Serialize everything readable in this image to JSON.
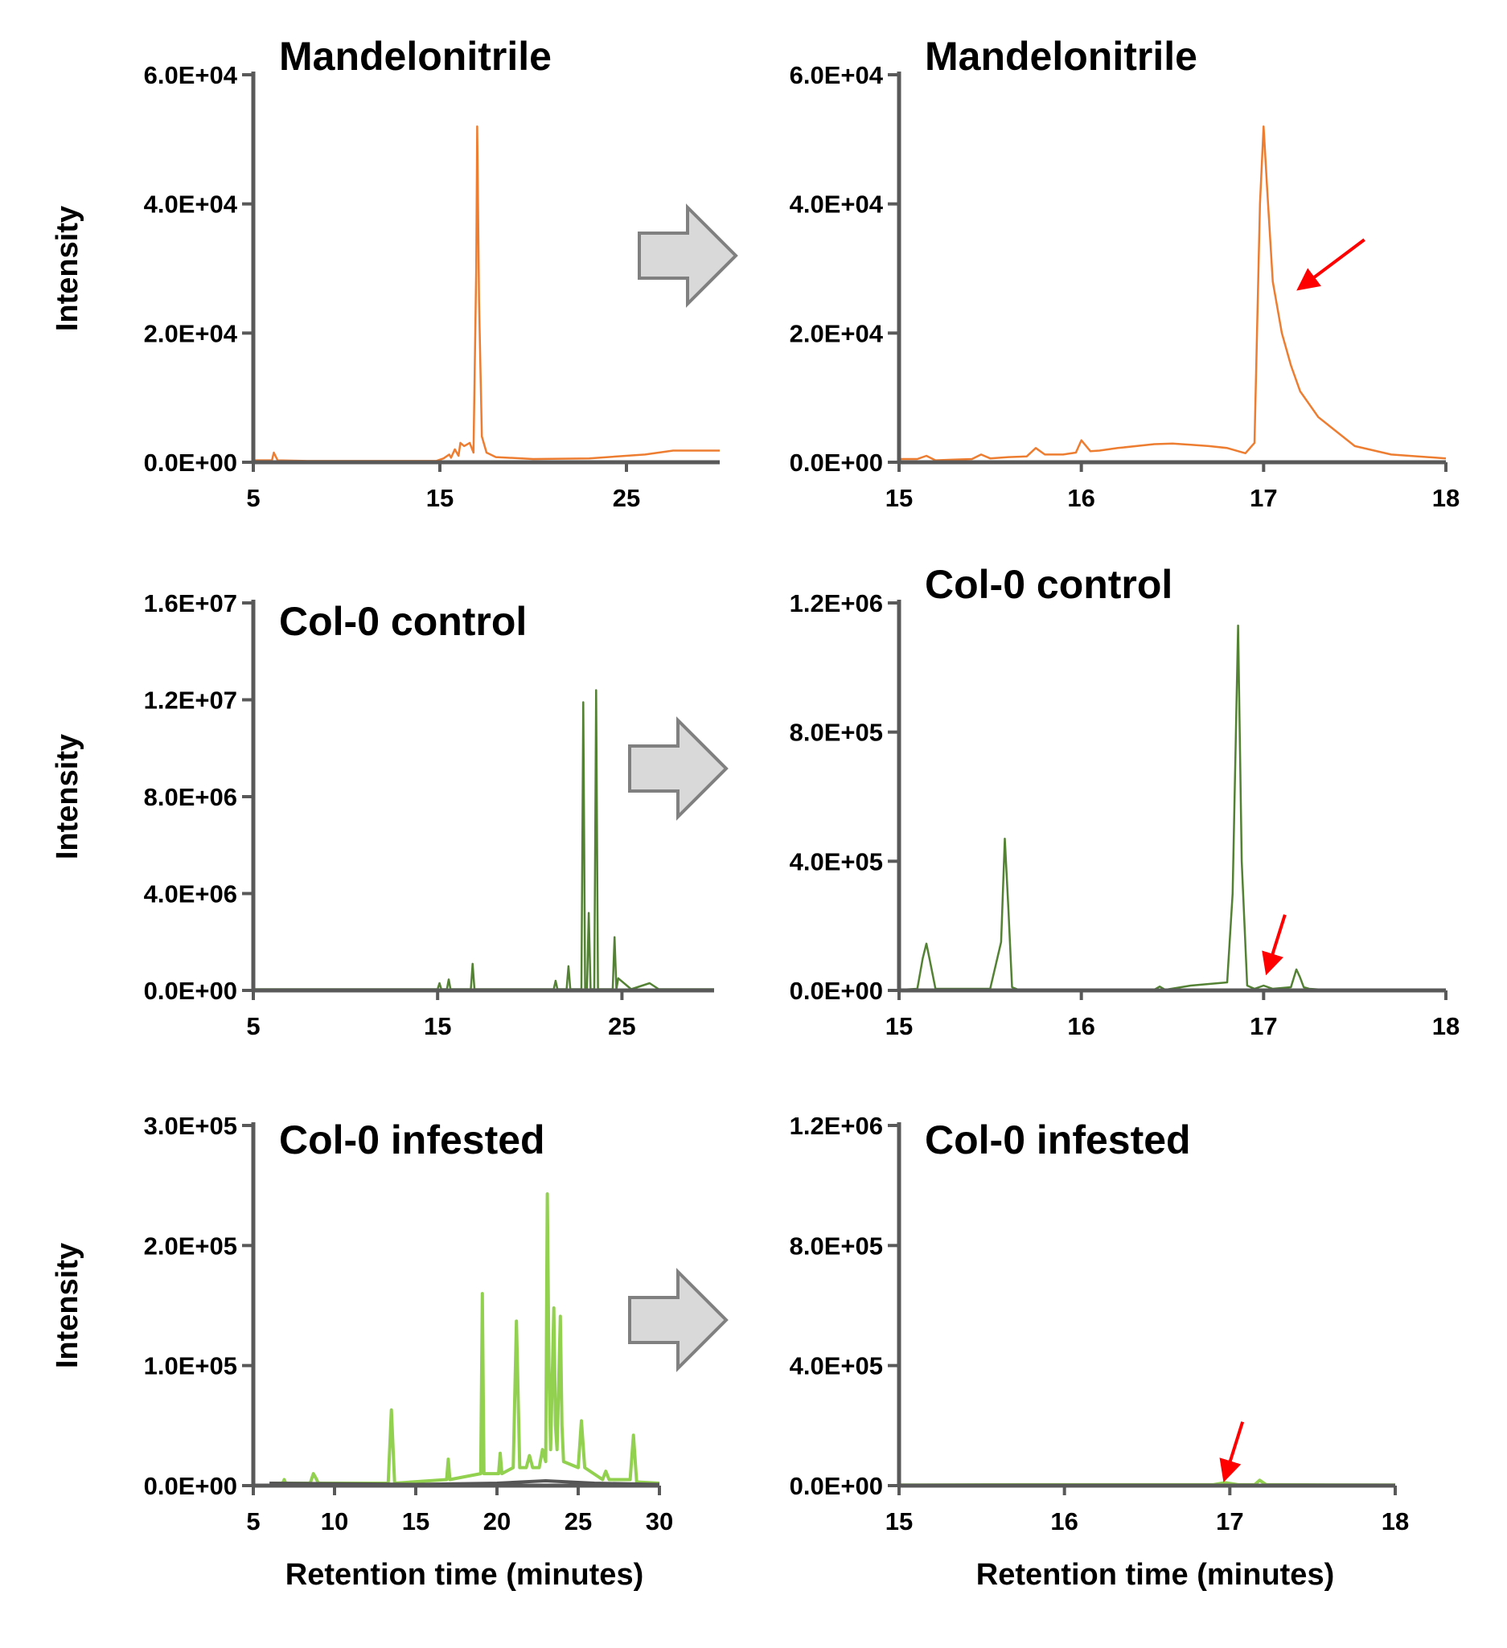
{
  "chart_data": [
    {
      "type": "line",
      "title": "Mandelonitrile",
      "ylabel": "Intensity",
      "xlabel": "",
      "xlim": [
        5,
        30
      ],
      "ylim": [
        0,
        60000
      ],
      "xticks": [
        5,
        15,
        25
      ],
      "xtick_labels": [
        "5",
        "15",
        "25"
      ],
      "yticks": [
        0,
        20000,
        40000,
        60000
      ],
      "ytick_labels": [
        "0.0E+00",
        "2.0E+04",
        "4.0E+04",
        "6.0E+04"
      ],
      "color": "#ed7d31",
      "series": [
        {
          "x": [
            5,
            6.0,
            6.1,
            6.3,
            8,
            14.8,
            15.2,
            15.5,
            15.6,
            15.8,
            16.0,
            16.1,
            16.3,
            16.6,
            16.8,
            16.95,
            17.0,
            17.1,
            17.25,
            17.5,
            18,
            20,
            23,
            26,
            27.5,
            30
          ],
          "y": [
            300,
            300,
            1500,
            300,
            200,
            200,
            600,
            1200,
            700,
            2000,
            1000,
            3000,
            2500,
            3000,
            1500,
            30000,
            52000,
            25000,
            4000,
            1500,
            800,
            500,
            600,
            1200,
            1800,
            1800
          ]
        }
      ]
    },
    {
      "type": "line",
      "title": "Mandelonitrile",
      "ylabel": "",
      "xlabel": "",
      "xlim": [
        15,
        18
      ],
      "ylim": [
        0,
        60000
      ],
      "xticks": [
        15,
        16,
        17,
        18
      ],
      "xtick_labels": [
        "15",
        "16",
        "17",
        "18"
      ],
      "yticks": [
        0,
        20000,
        40000,
        60000
      ],
      "ytick_labels": [
        "0.0E+00",
        "2.0E+04",
        "4.0E+04",
        "6.0E+04"
      ],
      "color": "#ed7d31",
      "arrow": {
        "x": 17.2,
        "y": 27000
      },
      "series": [
        {
          "x": [
            15,
            15.1,
            15.15,
            15.2,
            15.3,
            15.4,
            15.45,
            15.5,
            15.6,
            15.7,
            15.75,
            15.8,
            15.9,
            15.97,
            16.0,
            16.05,
            16.1,
            16.2,
            16.4,
            16.5,
            16.6,
            16.7,
            16.8,
            16.9,
            16.95,
            16.98,
            17.0,
            17.02,
            17.05,
            17.1,
            17.15,
            17.2,
            17.3,
            17.5,
            17.7,
            18.0
          ],
          "y": [
            500,
            500,
            1000,
            300,
            400,
            500,
            1200,
            600,
            800,
            900,
            2200,
            1200,
            1200,
            1500,
            3400,
            1700,
            1800,
            2200,
            2800,
            2900,
            2700,
            2500,
            2200,
            1400,
            3000,
            40000,
            52000,
            42000,
            28000,
            20000,
            15000,
            11000,
            7000,
            2500,
            1200,
            600
          ]
        }
      ]
    },
    {
      "type": "line",
      "title": "Col-0 control",
      "ylabel": "Intensity",
      "xlabel": "",
      "xlim": [
        5,
        30
      ],
      "ylim": [
        0,
        16000000
      ],
      "xticks": [
        5,
        15,
        25
      ],
      "xtick_labels": [
        "5",
        "15",
        "25"
      ],
      "yticks": [
        0,
        4000000,
        8000000,
        12000000,
        16000000
      ],
      "ytick_labels": [
        "0.0E+00",
        "4.0E+06",
        "8.0E+06",
        "1.2E+07",
        "1.6E+07"
      ],
      "color": "#548235",
      "series": [
        {
          "x": [
            5,
            15.0,
            15.1,
            15.2,
            15.5,
            15.6,
            15.7,
            16.8,
            16.9,
            17.0,
            21.3,
            21.4,
            21.5,
            22.0,
            22.1,
            22.2,
            22.8,
            22.9,
            23.0,
            23.1,
            23.2,
            23.3,
            23.5,
            23.6,
            23.7,
            24.5,
            24.6,
            24.7,
            24.8,
            25.5,
            26.5,
            27.0,
            30
          ],
          "y": [
            50000,
            50000,
            300000,
            50000,
            50000,
            450000,
            50000,
            50000,
            1100000,
            50000,
            50000,
            400000,
            50000,
            50000,
            1000000,
            50000,
            50000,
            11900000,
            100000,
            50000,
            3200000,
            50000,
            50000,
            12400000,
            50000,
            50000,
            2200000,
            50000,
            500000,
            50000,
            300000,
            50000,
            50000
          ]
        }
      ]
    },
    {
      "type": "line",
      "title": "Col-0 control",
      "ylabel": "",
      "xlabel": "",
      "xlim": [
        15,
        18
      ],
      "ylim": [
        0,
        1200000
      ],
      "xticks": [
        15,
        16,
        17,
        18
      ],
      "xtick_labels": [
        "15",
        "16",
        "17",
        "18"
      ],
      "yticks": [
        0,
        400000,
        800000,
        1200000
      ],
      "ytick_labels": [
        "0.0E+00",
        "4.0E+05",
        "8.0E+05",
        "1.2E+06"
      ],
      "color": "#548235",
      "arrow": {
        "x": 17.02,
        "y": 60000
      },
      "series": [
        {
          "x": [
            15,
            15.1,
            15.13,
            15.15,
            15.17,
            15.2,
            15.5,
            15.56,
            15.58,
            15.6,
            15.62,
            15.65,
            15.8,
            15.9,
            16.4,
            16.43,
            16.46,
            16.6,
            16.7,
            16.8,
            16.83,
            16.86,
            16.88,
            16.91,
            16.95,
            17.0,
            17.05,
            17.15,
            17.18,
            17.2,
            17.22,
            17.25,
            17.3,
            17.5,
            18.0
          ],
          "y": [
            2000,
            5000,
            100000,
            145000,
            90000,
            5000,
            5000,
            150000,
            470000,
            250000,
            10000,
            3000,
            3000,
            2000,
            2000,
            12000,
            2000,
            15000,
            20000,
            25000,
            300000,
            1130000,
            400000,
            15000,
            5000,
            15000,
            5000,
            10000,
            65000,
            40000,
            10000,
            5000,
            3000,
            2000,
            2000
          ]
        }
      ]
    },
    {
      "type": "line",
      "title": "Col-0 infested",
      "ylabel": "Intensity",
      "xlabel": "Retention time (minutes)",
      "xlim": [
        5,
        30
      ],
      "ylim": [
        0,
        300000
      ],
      "xticks": [
        5,
        10,
        15,
        20,
        25,
        30
      ],
      "xtick_labels": [
        "5",
        "10",
        "15",
        "20",
        "25",
        "30"
      ],
      "yticks": [
        0,
        100000,
        200000,
        300000
      ],
      "ytick_labels": [
        "0.0E+00",
        "1.0E+05",
        "2.0E+05",
        "3.0E+05"
      ],
      "color": "#92d050",
      "series": [
        {
          "x": [
            6,
            6.8,
            6.9,
            7.0,
            8.5,
            8.7,
            8.9,
            9.0,
            13.3,
            13.5,
            13.7,
            16.9,
            17.0,
            17.1,
            19.0,
            19.1,
            19.2,
            20.1,
            20.2,
            20.3,
            21.0,
            21.2,
            21.4,
            21.8,
            22.0,
            22.2,
            22.6,
            22.8,
            23.0,
            23.1,
            23.2,
            23.3,
            23.5,
            23.6,
            23.7,
            23.9,
            24.0,
            24.1,
            25.0,
            25.2,
            25.4,
            26.5,
            26.7,
            26.9,
            28.2,
            28.4,
            28.6,
            30
          ],
          "y": [
            2000,
            2000,
            5000,
            2000,
            2000,
            10000,
            5000,
            2000,
            2000,
            63000,
            2000,
            5000,
            22000,
            5000,
            10000,
            160000,
            10000,
            10000,
            27000,
            10000,
            15000,
            137000,
            15000,
            15000,
            25000,
            15000,
            15000,
            30000,
            20000,
            243000,
            100000,
            30000,
            148000,
            50000,
            30000,
            141000,
            50000,
            20000,
            15000,
            54000,
            15000,
            5000,
            12000,
            5000,
            5000,
            42000,
            3000,
            2000
          ]
        },
        {
          "x": [
            6,
            15,
            20,
            23,
            26,
            30
          ],
          "y": [
            2000,
            1000,
            2000,
            4000,
            2000,
            1000
          ],
          "color": "#555555"
        }
      ]
    },
    {
      "type": "line",
      "title": "Col-0 infested",
      "ylabel": "",
      "xlabel": "Retention time (minutes)",
      "xlim": [
        15,
        18
      ],
      "ylim": [
        0,
        1200000
      ],
      "xticks": [
        15,
        16,
        17,
        18
      ],
      "xtick_labels": [
        "15",
        "16",
        "17",
        "18"
      ],
      "yticks": [
        0,
        400000,
        800000,
        1200000
      ],
      "ytick_labels": [
        "0.0E+00",
        "4.0E+05",
        "8.0E+05",
        "1.2E+06"
      ],
      "color": "#92d050",
      "arrow": {
        "x": 16.97,
        "y": 25000
      },
      "series": [
        {
          "x": [
            15,
            15.8,
            16.9,
            16.97,
            17.05,
            17.15,
            17.18,
            17.22,
            17.3,
            18.0
          ],
          "y": [
            2000,
            3000,
            3000,
            10000,
            3000,
            3000,
            18000,
            3000,
            3000,
            2000
          ]
        }
      ]
    }
  ]
}
